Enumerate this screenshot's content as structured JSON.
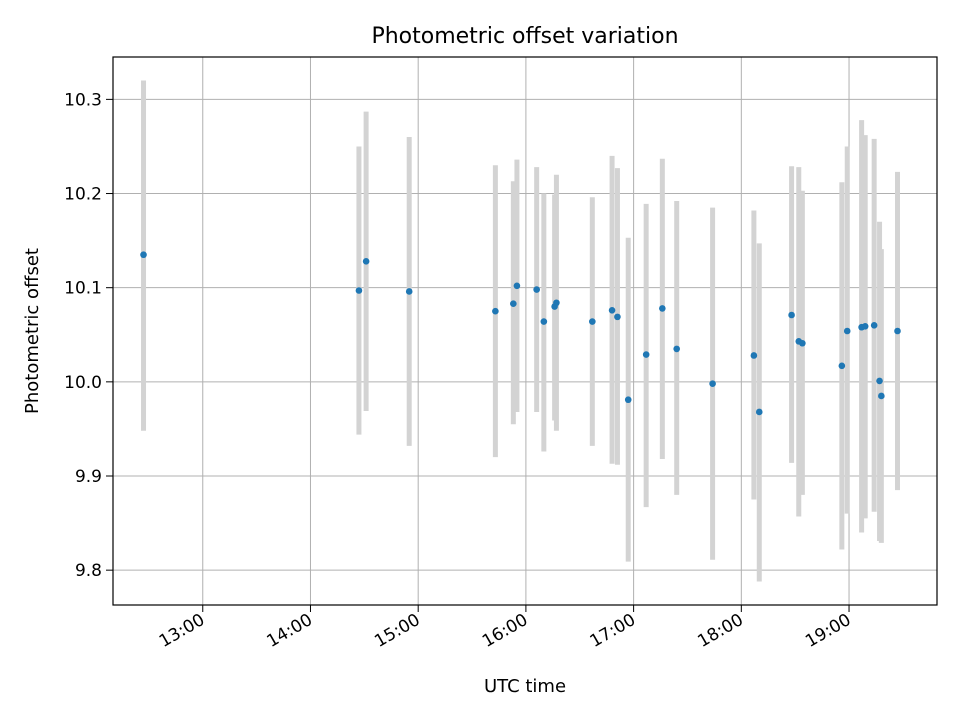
{
  "chart_data": {
    "type": "scatter",
    "title": "Photometric offset variation",
    "xlabel": "UTC time",
    "ylabel": "Photometric offset",
    "x_ticks": [
      "13:00",
      "14:00",
      "15:00",
      "16:00",
      "17:00",
      "18:00",
      "19:00"
    ],
    "y_ticks": [
      "9.8",
      "9.9",
      "10.0",
      "10.1",
      "10.2",
      "10.3"
    ],
    "y_tick_values": [
      9.8,
      9.9,
      10.0,
      10.1,
      10.2,
      10.3
    ],
    "xlim": [
      "12:10",
      "19:49"
    ],
    "ylim": [
      9.763,
      10.345
    ],
    "grid": true,
    "point_color": "#1f77b4",
    "errorbar_color": "#d3d3d3",
    "points": [
      {
        "x": "12:27",
        "y": 10.135,
        "ylow": 9.948,
        "yhigh": 10.32
      },
      {
        "x": "14:27",
        "y": 10.097,
        "ylow": 9.944,
        "yhigh": 10.25
      },
      {
        "x": "14:31",
        "y": 10.128,
        "ylow": 9.969,
        "yhigh": 10.287
      },
      {
        "x": "14:55",
        "y": 10.096,
        "ylow": 9.932,
        "yhigh": 10.26
      },
      {
        "x": "15:43",
        "y": 10.075,
        "ylow": 9.92,
        "yhigh": 10.23
      },
      {
        "x": "15:53",
        "y": 10.083,
        "ylow": 9.955,
        "yhigh": 10.213
      },
      {
        "x": "15:55",
        "y": 10.102,
        "ylow": 9.968,
        "yhigh": 10.236
      },
      {
        "x": "16:06",
        "y": 10.098,
        "ylow": 9.968,
        "yhigh": 10.228
      },
      {
        "x": "16:10",
        "y": 10.064,
        "ylow": 9.926,
        "yhigh": 10.2
      },
      {
        "x": "16:16",
        "y": 10.08,
        "ylow": 9.959,
        "yhigh": 10.199
      },
      {
        "x": "16:17",
        "y": 10.084,
        "ylow": 9.948,
        "yhigh": 10.22
      },
      {
        "x": "16:37",
        "y": 10.064,
        "ylow": 9.932,
        "yhigh": 10.196
      },
      {
        "x": "16:48",
        "y": 10.076,
        "ylow": 9.913,
        "yhigh": 10.24
      },
      {
        "x": "16:51",
        "y": 10.069,
        "ylow": 9.912,
        "yhigh": 10.227
      },
      {
        "x": "16:57",
        "y": 9.981,
        "ylow": 9.809,
        "yhigh": 10.153
      },
      {
        "x": "17:07",
        "y": 10.029,
        "ylow": 9.867,
        "yhigh": 10.189
      },
      {
        "x": "17:16",
        "y": 10.078,
        "ylow": 9.918,
        "yhigh": 10.237
      },
      {
        "x": "17:24",
        "y": 10.035,
        "ylow": 9.88,
        "yhigh": 10.192
      },
      {
        "x": "17:44",
        "y": 9.998,
        "ylow": 9.811,
        "yhigh": 10.185
      },
      {
        "x": "18:07",
        "y": 10.028,
        "ylow": 9.875,
        "yhigh": 10.182
      },
      {
        "x": "18:10",
        "y": 9.968,
        "ylow": 9.788,
        "yhigh": 10.147
      },
      {
        "x": "18:28",
        "y": 10.071,
        "ylow": 9.914,
        "yhigh": 10.229
      },
      {
        "x": "18:32",
        "y": 10.043,
        "ylow": 9.857,
        "yhigh": 10.228
      },
      {
        "x": "18:34",
        "y": 10.041,
        "ylow": 9.88,
        "yhigh": 10.203
      },
      {
        "x": "18:56",
        "y": 10.017,
        "ylow": 9.822,
        "yhigh": 10.212
      },
      {
        "x": "18:59",
        "y": 10.054,
        "ylow": 9.86,
        "yhigh": 10.25
      },
      {
        "x": "19:07",
        "y": 10.058,
        "ylow": 9.84,
        "yhigh": 10.278
      },
      {
        "x": "19:09",
        "y": 10.059,
        "ylow": 9.855,
        "yhigh": 10.262
      },
      {
        "x": "19:14",
        "y": 10.06,
        "ylow": 9.862,
        "yhigh": 10.258
      },
      {
        "x": "19:17",
        "y": 10.001,
        "ylow": 9.831,
        "yhigh": 10.17
      },
      {
        "x": "19:18",
        "y": 9.985,
        "ylow": 9.829,
        "yhigh": 10.141
      },
      {
        "x": "19:27",
        "y": 10.054,
        "ylow": 9.885,
        "yhigh": 10.223
      }
    ]
  }
}
